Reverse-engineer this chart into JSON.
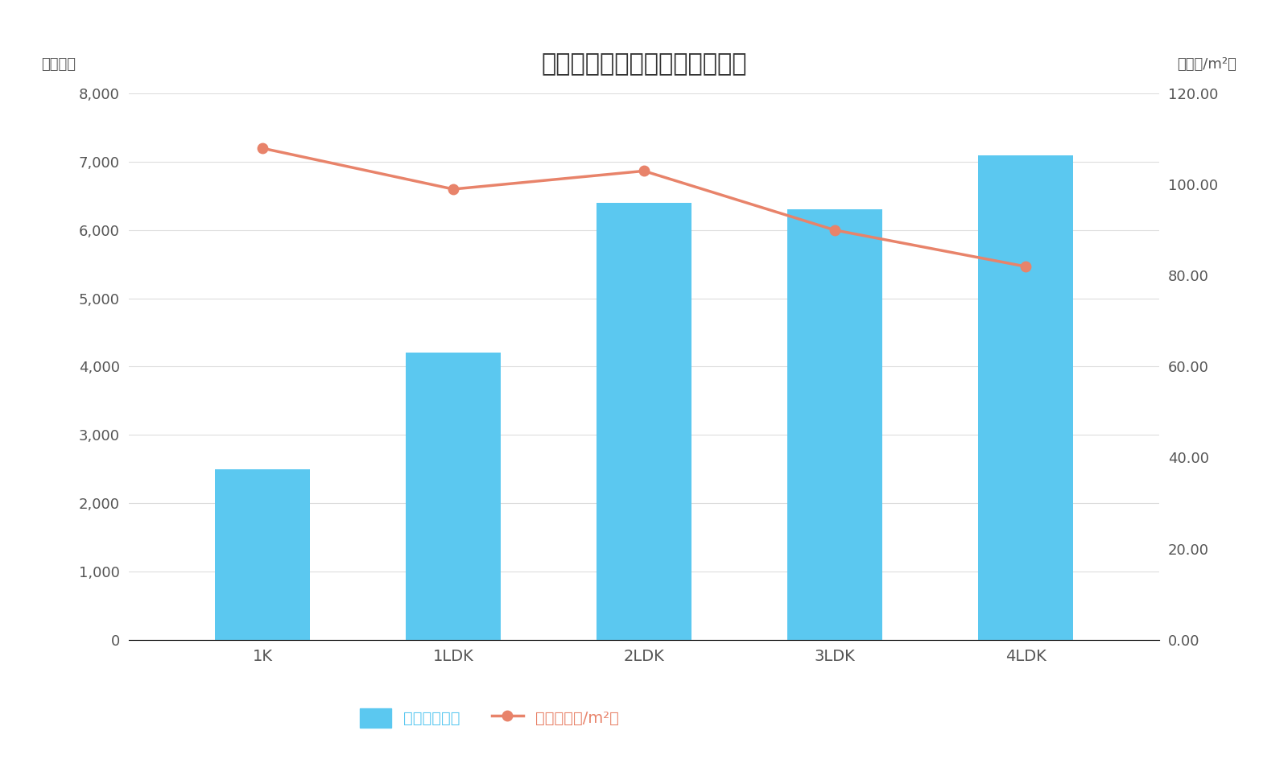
{
  "title": "江東区間取り別マンション価格",
  "categories": [
    "1K",
    "1LDK",
    "2LDK",
    "3LDK",
    "4LDK"
  ],
  "bar_values": [
    2500,
    4200,
    6400,
    6300,
    7100
  ],
  "line_values": [
    108,
    99,
    103,
    90,
    82
  ],
  "bar_color": "#5BC8F0",
  "line_color": "#E8836A",
  "ylabel_left": "（万円）",
  "ylabel_right": "（万円/m²）",
  "ylim_left": [
    0,
    8000
  ],
  "ylim_right": [
    0,
    120
  ],
  "yticks_left": [
    0,
    1000,
    2000,
    3000,
    4000,
    5000,
    6000,
    7000,
    8000
  ],
  "yticks_right": [
    0.0,
    20.0,
    40.0,
    60.0,
    80.0,
    100.0,
    120.0
  ],
  "legend_bar_label": "価格（万円）",
  "legend_line_label": "単価（万円/m²）",
  "background_color": "#FFFFFF",
  "title_fontsize": 22,
  "axis_fontsize": 13,
  "tick_fontsize": 13,
  "legend_fontsize": 14,
  "text_color": "#555555",
  "grid_color": "#DDDDDD",
  "bar_width": 0.5
}
